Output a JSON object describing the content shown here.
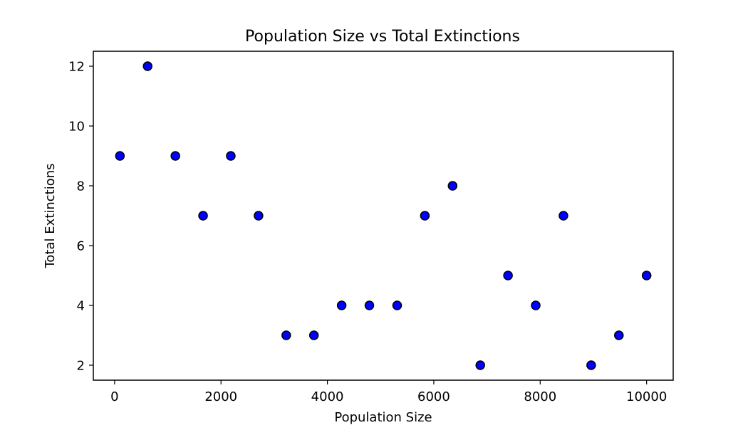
{
  "chart_data": {
    "type": "scatter",
    "title": "Population Size vs Total Extinctions",
    "xlabel": "Population Size",
    "ylabel": "Total Extinctions",
    "xlim": [
      -400,
      10500
    ],
    "ylim": [
      1.5,
      12.5
    ],
    "xticks": [
      0,
      2000,
      4000,
      6000,
      8000,
      10000
    ],
    "yticks": [
      2,
      4,
      6,
      8,
      10,
      12
    ],
    "grid": false,
    "marker_color": "#0000ff",
    "marker_edge_color": "#000000",
    "series": [
      {
        "x": [
          100,
          621,
          1142,
          1663,
          2184,
          2705,
          3226,
          3747,
          4268,
          4789,
          5311,
          5832,
          6353,
          6874,
          7395,
          7916,
          8437,
          8958,
          9479,
          10000
        ],
        "y": [
          9,
          12,
          9,
          7,
          9,
          7,
          3,
          3,
          4,
          4,
          4,
          7,
          8,
          2,
          5,
          4,
          7,
          2,
          3,
          5
        ]
      }
    ]
  }
}
